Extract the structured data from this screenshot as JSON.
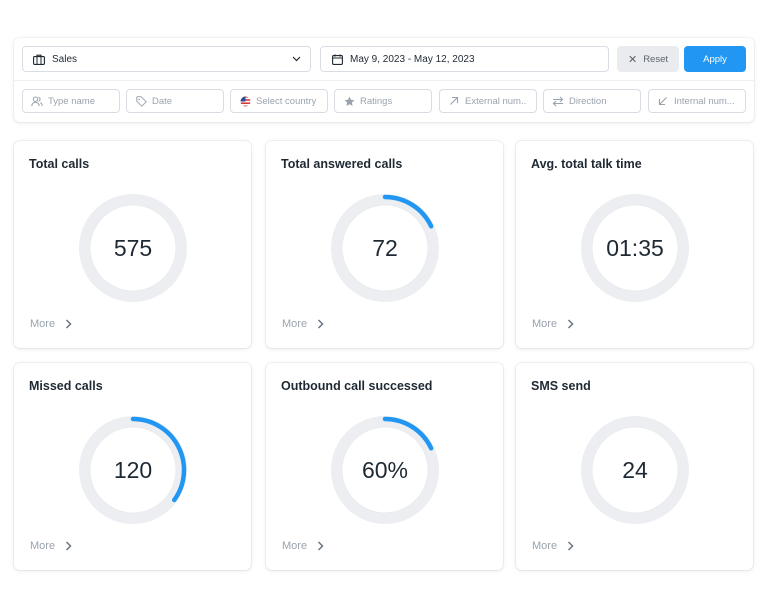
{
  "filters": {
    "department": {
      "value": "Sales",
      "icon": "briefcase-icon"
    },
    "date_range": {
      "value": "May 9, 2023 - May 12, 2023",
      "icon": "calendar-icon"
    },
    "reset_label": "Reset",
    "apply_label": "Apply",
    "chips": [
      {
        "label": "Type name",
        "icon": "users-icon"
      },
      {
        "label": "Date",
        "icon": "tag-icon"
      },
      {
        "label": "Select country",
        "icon": "us-flag-icon"
      },
      {
        "label": "Ratings",
        "icon": "star-icon"
      },
      {
        "label": "External num..",
        "icon": "arrow-up-right-icon"
      },
      {
        "label": "Direction",
        "icon": "swap-arrows-icon"
      },
      {
        "label": "Internal num...",
        "icon": "arrow-down-left-icon"
      }
    ]
  },
  "colors": {
    "accent": "#2196f3",
    "track": "#eceef1",
    "text": "#1f2933",
    "muted": "#9aa3ad"
  },
  "cards": [
    {
      "title": "Total calls",
      "value": "575",
      "progress": 0,
      "more_label": "More"
    },
    {
      "title": "Total answered calls",
      "value": "72",
      "progress": 0.18,
      "more_label": "More"
    },
    {
      "title": "Avg. total talk time",
      "value": "01:35",
      "progress": 0,
      "more_label": "More"
    },
    {
      "title": "Missed calls",
      "value": "120",
      "progress": 0.35,
      "more_label": "More"
    },
    {
      "title": "Outbound call successed",
      "value": "60%",
      "progress": 0.18,
      "more_label": "More"
    },
    {
      "title": "SMS send",
      "value": "24",
      "progress": 0,
      "more_label": "More"
    }
  ]
}
